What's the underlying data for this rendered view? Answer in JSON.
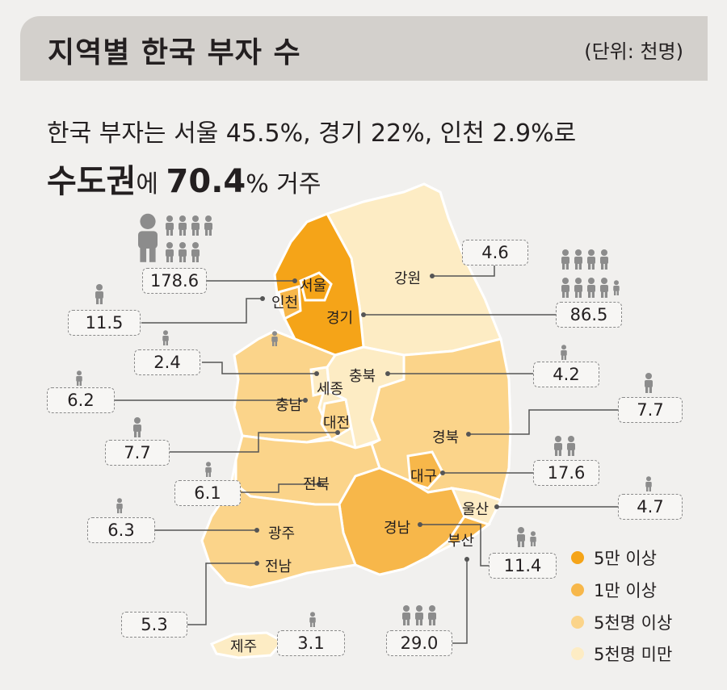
{
  "title": "지역별 한국 부자 수",
  "unit": "(단위: 천명)",
  "headline_line1": "한국 부자는 서울 45.5%, 경기 22%, 인천 2.9%로",
  "headline_line2": {
    "b1": "수도권",
    "t1": "에 ",
    "b2": "70.4",
    "t2": "% 거주"
  },
  "colors": {
    "tier1": "#f5a418",
    "tier2": "#f7b74a",
    "tier3": "#fbd48a",
    "tier4": "#fdecc4"
  },
  "regions": [
    {
      "name": "서울",
      "value": "178.6",
      "tier": 1
    },
    {
      "name": "인천",
      "value": "11.5",
      "tier": 2
    },
    {
      "name": "경기",
      "value": "86.5",
      "tier": 1
    },
    {
      "name": "강원",
      "value": "4.6",
      "tier": 4
    },
    {
      "name": "세종",
      "value": "2.4",
      "tier": 4
    },
    {
      "name": "충북",
      "value": "4.2",
      "tier": 4
    },
    {
      "name": "충남",
      "value": "6.2",
      "tier": 3
    },
    {
      "name": "대전",
      "value": "7.7",
      "tier": 3
    },
    {
      "name": "경북",
      "value": "7.7",
      "tier": 3
    },
    {
      "name": "대구",
      "value": "17.6",
      "tier": 2
    },
    {
      "name": "전북",
      "value": "6.1",
      "tier": 3
    },
    {
      "name": "울산",
      "value": "4.7",
      "tier": 4
    },
    {
      "name": "광주",
      "value": "6.3",
      "tier": 3
    },
    {
      "name": "경남",
      "value": "11.4",
      "tier": 2
    },
    {
      "name": "부산",
      "value": "29.0",
      "tier": 2
    },
    {
      "name": "전남",
      "value": "5.3",
      "tier": 3
    },
    {
      "name": "제주",
      "value": "3.1",
      "tier": 4
    }
  ],
  "legend": [
    {
      "label": "5만 이상",
      "color": "#f5a418"
    },
    {
      "label": "1만 이상",
      "color": "#f7b74a"
    },
    {
      "label": "5천명 이상",
      "color": "#fbd48a"
    },
    {
      "label": "5천명 미만",
      "color": "#fdecc4"
    }
  ]
}
